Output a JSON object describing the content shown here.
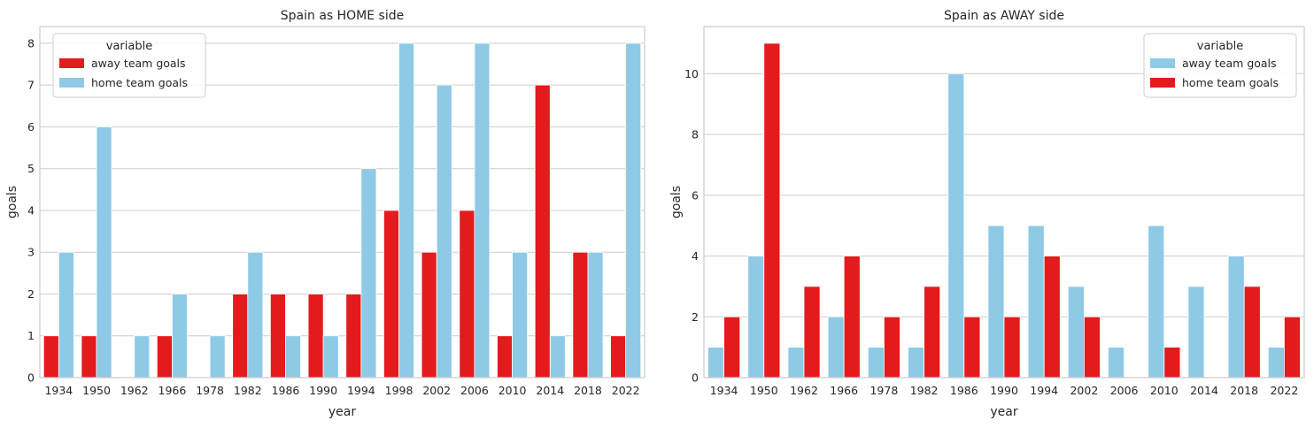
{
  "colors": {
    "red": "#e41a1c",
    "sky": "#8ecae6",
    "grid": "#cccccc",
    "spine": "#cccccc"
  },
  "chart_data": [
    {
      "type": "bar",
      "title": "Spain as HOME side",
      "xlabel": "year",
      "ylabel": "goals",
      "categories": [
        "1934",
        "1950",
        "1962",
        "1966",
        "1978",
        "1982",
        "1986",
        "1990",
        "1994",
        "1998",
        "2002",
        "2006",
        "2010",
        "2014",
        "2018",
        "2022"
      ],
      "ylim": [
        0,
        8.4
      ],
      "yticks": [
        0,
        1,
        2,
        3,
        4,
        5,
        6,
        7,
        8
      ],
      "grid": "horizontal",
      "legend": {
        "title": "variable",
        "placement": "top-left"
      },
      "series": [
        {
          "name": "away team goals",
          "color": "#e41a1c",
          "values": [
            1,
            1,
            0,
            1,
            0,
            2,
            2,
            2,
            2,
            4,
            3,
            4,
            1,
            7,
            3,
            1
          ]
        },
        {
          "name": "home team goals",
          "color": "#8ecae6",
          "values": [
            3,
            6,
            1,
            2,
            1,
            3,
            1,
            1,
            5,
            8,
            7,
            8,
            3,
            1,
            3,
            8
          ]
        }
      ]
    },
    {
      "type": "bar",
      "title": "Spain as AWAY side",
      "xlabel": "year",
      "ylabel": "goals",
      "categories": [
        "1934",
        "1950",
        "1962",
        "1966",
        "1978",
        "1982",
        "1986",
        "1990",
        "1994",
        "2002",
        "2006",
        "2010",
        "2014",
        "2018",
        "2022"
      ],
      "ylim": [
        0,
        11.55
      ],
      "yticks": [
        0,
        2,
        4,
        6,
        8,
        10
      ],
      "grid": "horizontal",
      "legend": {
        "title": "variable",
        "placement": "top-right"
      },
      "series": [
        {
          "name": "away team goals",
          "color": "#8ecae6",
          "values": [
            1,
            4,
            1,
            2,
            1,
            1,
            10,
            5,
            5,
            3,
            1,
            5,
            3,
            4,
            1
          ]
        },
        {
          "name": "home team goals",
          "color": "#e41a1c",
          "values": [
            2,
            11,
            3,
            4,
            2,
            3,
            2,
            2,
            4,
            2,
            0,
            1,
            0,
            3,
            2
          ]
        }
      ]
    }
  ]
}
